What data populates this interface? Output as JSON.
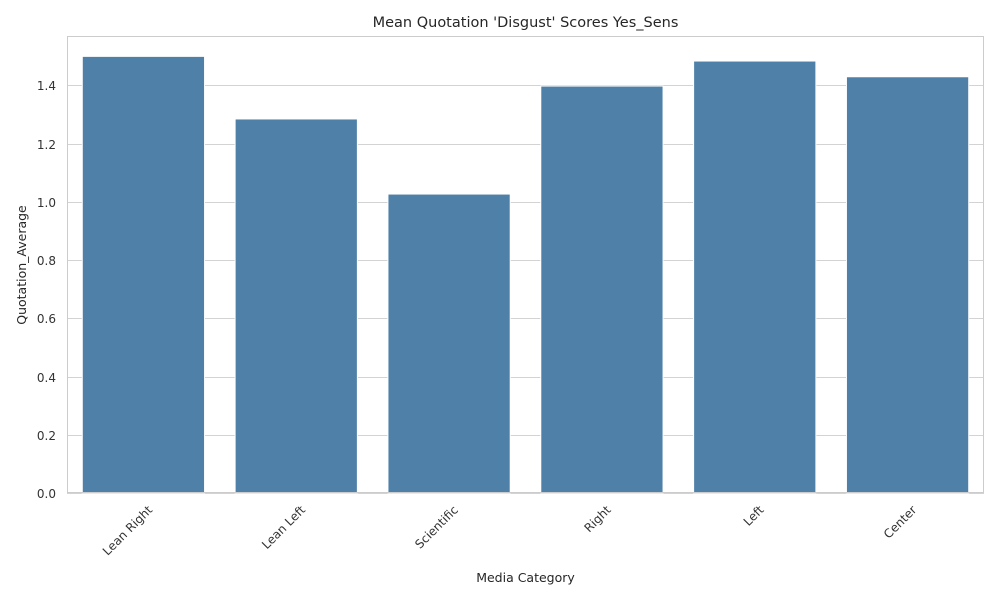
{
  "chart_data": {
    "type": "bar",
    "title": "Mean Quotation 'Disgust' Scores Yes_Sens",
    "xlabel": "Media Category",
    "ylabel": "Quotation_Average",
    "categories": [
      "Lean Right",
      "Lean Left",
      "Scientific",
      "Right",
      "Left",
      "Center"
    ],
    "values": [
      1.5,
      1.285,
      1.027,
      1.398,
      1.484,
      1.43
    ],
    "ylim": [
      0,
      1.57
    ],
    "yticks": [
      0.0,
      0.2,
      0.4,
      0.6,
      0.8,
      1.0,
      1.2,
      1.4
    ],
    "ytick_labels": [
      "0.0",
      "0.2",
      "0.4",
      "0.6",
      "0.8",
      "1.0",
      "1.2",
      "1.4"
    ],
    "grid": true,
    "grid_axis": "y",
    "bar_color": "#4f81a8",
    "xtick_rotation": "45"
  }
}
